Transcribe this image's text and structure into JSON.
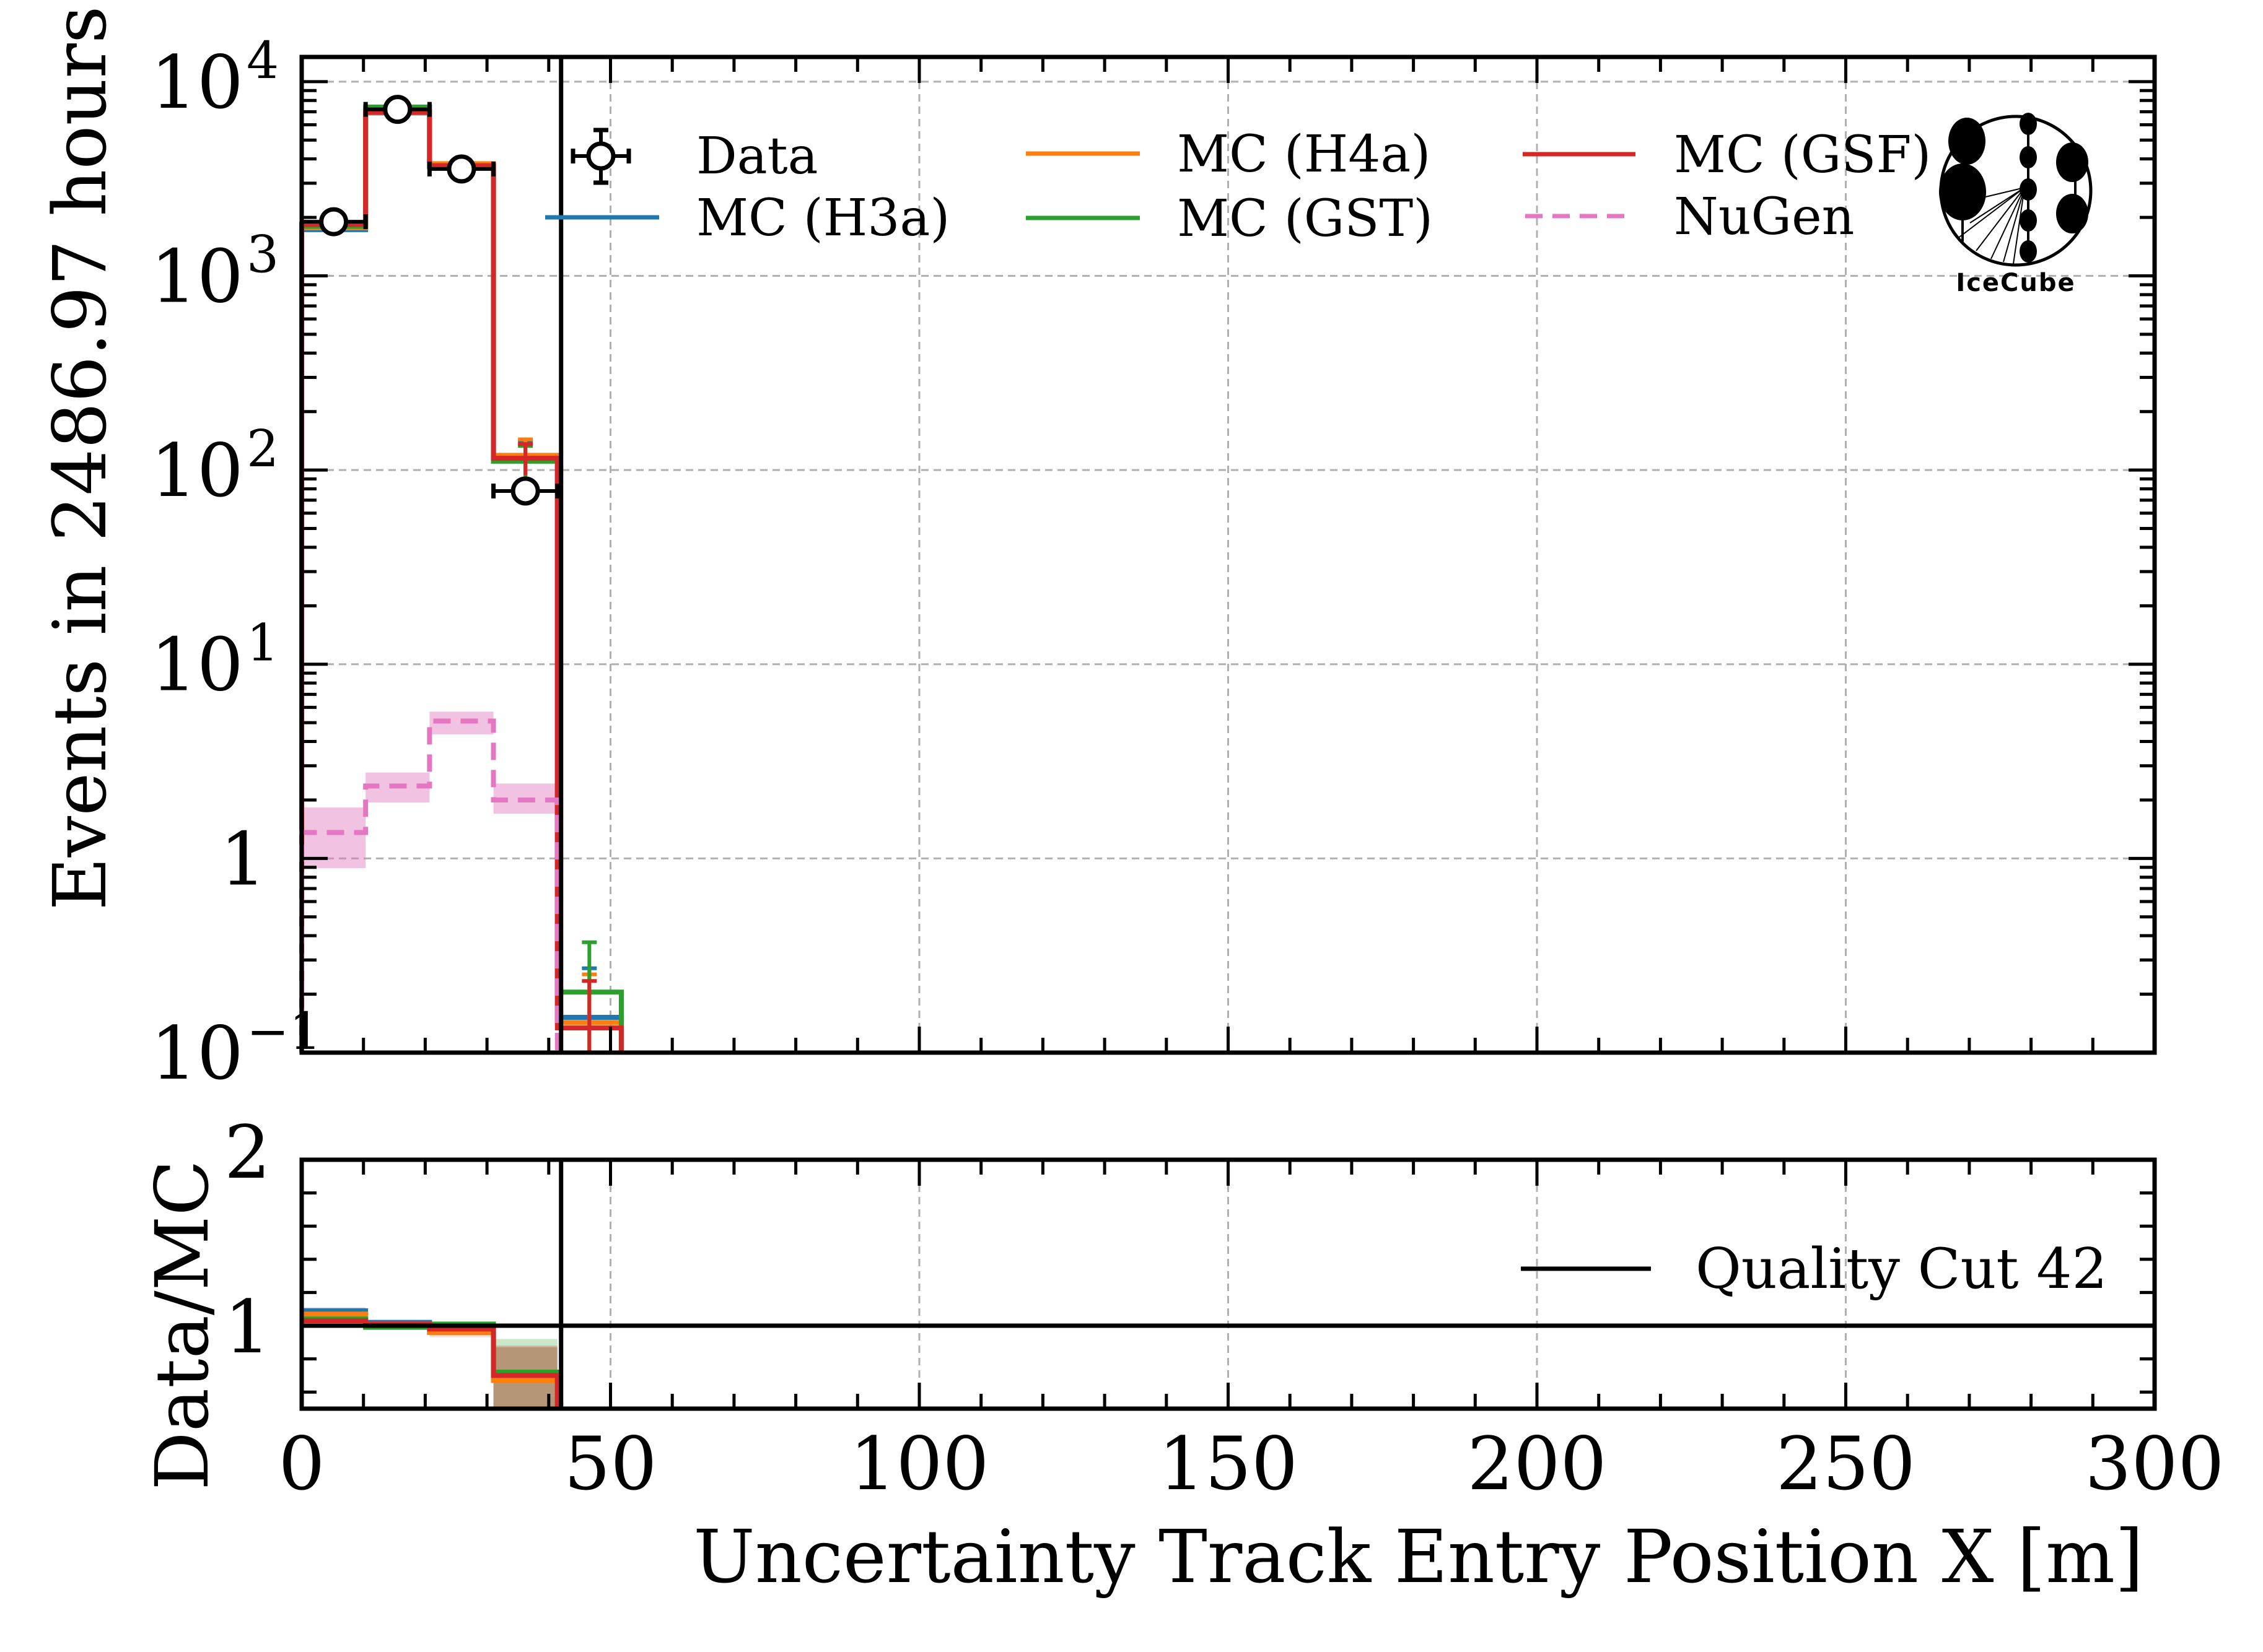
{
  "chart_data": [
    {
      "type": "histogram-step",
      "panel": "main",
      "title": "",
      "xlabel": "Uncertainty Track Entry Position X [m]",
      "ylabel": "Events in 2486.97 hours",
      "yscale": "log",
      "xlim": [
        0,
        300
      ],
      "ylim": [
        0.1,
        13400
      ],
      "grid": true,
      "x_ticks": [
        0,
        50,
        100,
        150,
        200,
        250,
        300
      ],
      "y_ticks": [
        {
          "value": 0.1,
          "base": "10",
          "exp": "−1"
        },
        {
          "value": 1,
          "base": "1",
          "exp": ""
        },
        {
          "value": 10,
          "base": "10",
          "exp": "1"
        },
        {
          "value": 100,
          "base": "10",
          "exp": "2"
        },
        {
          "value": 1000,
          "base": "10",
          "exp": "3"
        },
        {
          "value": 10000,
          "base": "10",
          "exp": "4"
        }
      ],
      "bin_edges": [
        0,
        10.35,
        20.7,
        31.05,
        41.4,
        51.75
      ],
      "series": [
        {
          "name": "Data",
          "style": "points",
          "color": "#000000",
          "values": [
            1900,
            7200,
            3550,
            78,
            null
          ],
          "errors": [
            44,
            85,
            60,
            9,
            null
          ]
        },
        {
          "name": "MC (H3a)",
          "style": "step",
          "color": "#1f77b4",
          "values": [
            1730,
            6900,
            3700,
            117,
            0.152
          ],
          "errors": [
            null,
            null,
            null,
            24,
            0.12
          ]
        },
        {
          "name": "MC (H4a)",
          "style": "step",
          "color": "#ff7f0e",
          "values": [
            1770,
            6950,
            3780,
            119,
            0.143
          ],
          "errors": [
            null,
            null,
            null,
            25,
            0.11
          ]
        },
        {
          "name": "MC (GST)",
          "style": "step",
          "color": "#2ca02c",
          "values": [
            1800,
            7400,
            3650,
            111,
            0.205
          ],
          "errors": [
            null,
            null,
            null,
            22,
            0.165
          ]
        },
        {
          "name": "MC (GSF)",
          "style": "step",
          "color": "#d62728",
          "values": [
            1840,
            6980,
            3690,
            115,
            0.134
          ],
          "errors": [
            null,
            null,
            null,
            21,
            0.1
          ]
        },
        {
          "name": "NuGen",
          "style": "dashed-step",
          "color": "#e377c2",
          "values": [
            1.36,
            2.36,
            5.1,
            2.0,
            null
          ],
          "band_low": [
            0.89,
            1.94,
            4.35,
            1.7,
            null
          ],
          "band_high": [
            1.83,
            2.77,
            5.7,
            2.43,
            null
          ]
        }
      ],
      "vline": {
        "x": 42,
        "label": "Quality Cut 42",
        "color": "#000000"
      },
      "legend": {
        "placement": "top",
        "columns": 3,
        "entries": [
          "Data",
          "MC (H3a)",
          "MC (H4a)",
          "MC (GST)",
          "MC (GSF)",
          "NuGen"
        ]
      },
      "annotations": [
        "IceCube"
      ]
    },
    {
      "type": "histogram-step",
      "panel": "ratio",
      "xlabel": "Uncertainty Track Entry Position X [m]",
      "ylabel": "Data/MC",
      "yscale": "linear",
      "xlim": [
        0,
        300
      ],
      "ylim": [
        0.5,
        2
      ],
      "y_ticks": [
        1,
        2
      ],
      "x_ticks": [
        0,
        50,
        100,
        150,
        200,
        250,
        300
      ],
      "bin_edges": [
        0,
        10.35,
        20.7,
        31.05,
        41.4
      ],
      "series": [
        {
          "name": "MC (H3a)",
          "color": "#1f77b4",
          "values": [
            1.09,
            1.02,
            0.96,
            0.67
          ],
          "band": [
            [
              1.05,
              1.11
            ],
            [
              1.0,
              1.03
            ],
            [
              0.94,
              0.98
            ],
            [
              0.5,
              0.87
            ]
          ]
        },
        {
          "name": "MC (H4a)",
          "color": "#ff7f0e",
          "values": [
            1.07,
            1.01,
            0.96,
            0.67
          ],
          "band": [
            [
              1.04,
              1.1
            ],
            [
              1.0,
              1.03
            ],
            [
              0.93,
              0.98
            ],
            [
              0.5,
              0.87
            ]
          ]
        },
        {
          "name": "MC (GST)",
          "color": "#2ca02c",
          "values": [
            1.04,
            0.99,
            1.01,
            0.72
          ],
          "band": [
            [
              1.02,
              1.06
            ],
            [
              0.98,
              1.0
            ],
            [
              1.0,
              1.02
            ],
            [
              0.5,
              0.92
            ]
          ]
        },
        {
          "name": "MC (GSF)",
          "color": "#d62728",
          "values": [
            1.03,
            1.01,
            0.98,
            0.7
          ],
          "band": [
            [
              1.0,
              1.06
            ],
            [
              0.99,
              1.03
            ],
            [
              0.96,
              1.0
            ],
            [
              0.5,
              0.88
            ]
          ]
        }
      ],
      "hline": 1,
      "legend": {
        "placement": "center-right",
        "entries": [
          "Quality Cut 42"
        ]
      }
    }
  ],
  "labels": {
    "ylabel_main": "Events in 2486.97 hours",
    "ylabel_ratio": "Data/MC",
    "xlabel": "Uncertainty Track Entry Position X [m]",
    "legend_data": "Data",
    "legend_h3a": "MC (H3a)",
    "legend_h4a": "MC (H4a)",
    "legend_gst": "MC (GST)",
    "legend_gsf": "MC (GSF)",
    "legend_nugen": "NuGen",
    "legend_cut": "Quality Cut 42",
    "logo_text": "IceCube",
    "ratio_tick_1": "1",
    "ratio_tick_2": "2"
  }
}
